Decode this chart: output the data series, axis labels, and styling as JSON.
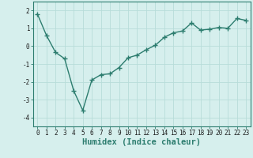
{
  "x": [
    0,
    1,
    2,
    3,
    4,
    5,
    6,
    7,
    8,
    9,
    10,
    11,
    12,
    13,
    14,
    15,
    16,
    17,
    18,
    19,
    20,
    21,
    22,
    23
  ],
  "y": [
    1.8,
    0.6,
    -0.35,
    -0.7,
    -2.5,
    -3.6,
    -1.9,
    -1.6,
    -1.55,
    -1.2,
    -0.65,
    -0.5,
    -0.2,
    0.05,
    0.5,
    0.75,
    0.85,
    1.3,
    0.9,
    0.95,
    1.05,
    1.0,
    1.55,
    1.45
  ],
  "line_color": "#2d7d6f",
  "marker": "+",
  "marker_size": 4,
  "background_color": "#d6efed",
  "grid_color": "#b8dcd9",
  "xlabel": "Humidex (Indice chaleur)",
  "xlim": [
    -0.5,
    23.5
  ],
  "ylim": [
    -4.5,
    2.5
  ],
  "yticks": [
    -4,
    -3,
    -2,
    -1,
    0,
    1,
    2
  ],
  "xticks": [
    0,
    1,
    2,
    3,
    4,
    5,
    6,
    7,
    8,
    9,
    10,
    11,
    12,
    13,
    14,
    15,
    16,
    17,
    18,
    19,
    20,
    21,
    22,
    23
  ],
  "tick_label_fontsize": 5.5,
  "xlabel_fontsize": 7.5,
  "linewidth": 1.0
}
